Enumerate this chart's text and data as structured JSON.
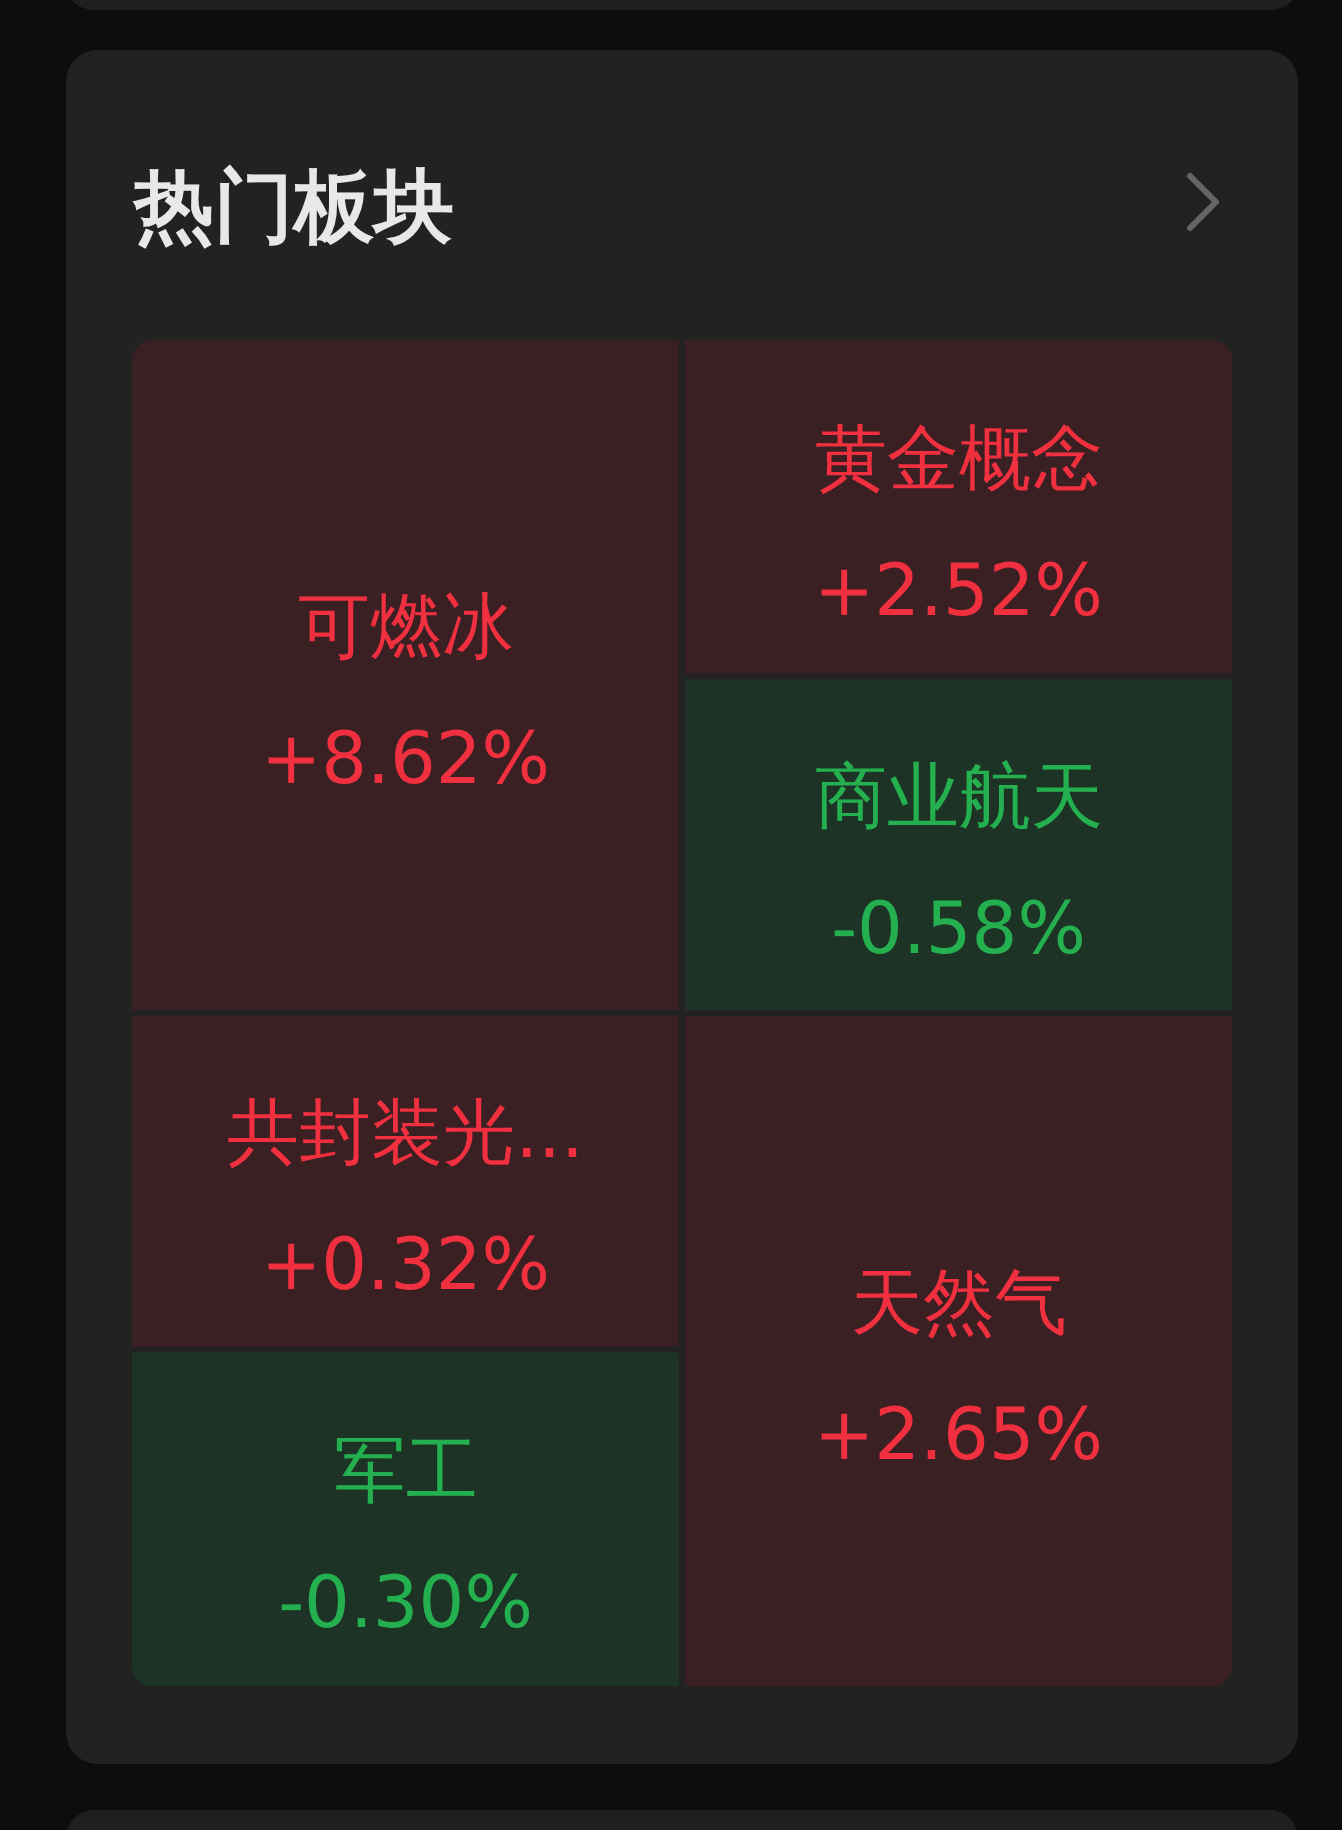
{
  "chart_data": {
    "type": "other",
    "title": "热门板块",
    "categories": [
      "可燃冰",
      "黄金概念",
      "商业航天",
      "共封装光...",
      "军工",
      "天然气"
    ],
    "values": [
      8.62,
      2.52,
      -0.58,
      0.32,
      -0.3,
      2.65
    ],
    "value_labels": [
      "+8.62%",
      "+2.52%",
      "-0.58%",
      "+0.32%",
      "-0.30%",
      "+2.65%"
    ],
    "colors": [
      "#3a1f23",
      "#3a1f23",
      "#1c3326",
      "#3a1f23",
      "#1c3326",
      "#3a1f23"
    ]
  }
}
